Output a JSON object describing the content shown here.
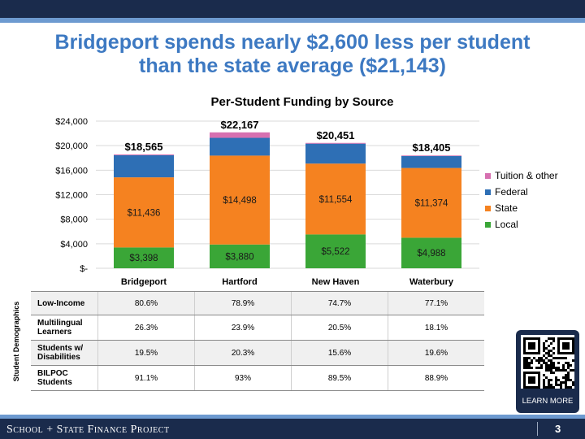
{
  "slide": {
    "title_line1": "Bridgeport spends nearly $2,600 less per student",
    "title_line2": "than the state average ($21,143)",
    "page_number": "3"
  },
  "footer": {
    "org_name": "School + State Finance Project"
  },
  "qr": {
    "label": "LEARN MORE"
  },
  "colors": {
    "local": "#3aa637",
    "state": "#f58220",
    "federal": "#2e6fb5",
    "tuition": "#d670b0",
    "navy": "#1a2b4c",
    "accent": "#6d9ad0"
  },
  "chart_data": {
    "type": "bar",
    "stacked": true,
    "title": "Per-Student Funding by Source",
    "categories": [
      "Bridgeport",
      "Hartford",
      "New Haven",
      "Waterbury"
    ],
    "series": [
      {
        "name": "Local",
        "values": [
          3398,
          3880,
          5522,
          4988
        ],
        "labels": [
          "$3,398",
          "$3,880",
          "$5,522",
          "$4,988"
        ]
      },
      {
        "name": "State",
        "values": [
          11436,
          14498,
          11554,
          11374
        ],
        "labels": [
          "$11,436",
          "$14,498",
          "$11,554",
          "$11,374"
        ]
      },
      {
        "name": "Federal",
        "values": [
          3600,
          2900,
          3250,
          1950
        ]
      },
      {
        "name": "Tuition & other",
        "values": [
          131,
          889,
          125,
          93
        ]
      }
    ],
    "totals": [
      18565,
      22167,
      20451,
      18405
    ],
    "total_labels": [
      "$18,565",
      "$22,167",
      "$20,451",
      "$18,405"
    ],
    "ylim": [
      0,
      24000
    ],
    "yticks": [
      0,
      4000,
      8000,
      12000,
      16000,
      20000,
      24000
    ],
    "ytick_labels": [
      "$-",
      "$4,000",
      "$8,000",
      "$12,000",
      "$16,000",
      "$20,000",
      "$24,000"
    ],
    "legend_order": [
      "Tuition & other",
      "Federal",
      "State",
      "Local"
    ],
    "legend_position": "right",
    "grid": true
  },
  "demographics": {
    "section_label": "Student Demographics",
    "rows": [
      {
        "label": "Low-Income",
        "values": [
          "80.6%",
          "78.9%",
          "74.7%",
          "77.1%"
        ]
      },
      {
        "label": "Multilingual Learners",
        "values": [
          "26.3%",
          "23.9%",
          "20.5%",
          "18.1%"
        ]
      },
      {
        "label": "Students w/ Disabilities",
        "values": [
          "19.5%",
          "20.3%",
          "15.6%",
          "19.6%"
        ]
      },
      {
        "label": "BILPOC Students",
        "values": [
          "91.1%",
          "93%",
          "89.5%",
          "88.9%"
        ]
      }
    ]
  }
}
